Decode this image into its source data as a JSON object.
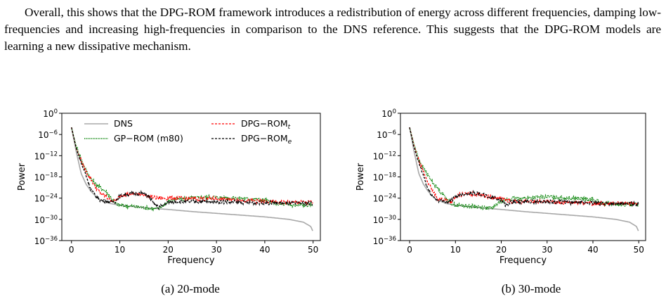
{
  "paragraph": "Overall, this shows that the DPG-ROM framework introduces a redistribution of energy across different frequencies, damping low-frequencies and increasing high-frequencies in comparison to the DNS reference. This suggests that the DPG-ROM models are learning a new dissipative mechanism.",
  "captions": {
    "a": "(a) 20-mode",
    "b": "(b) 30-mode"
  },
  "colors": {
    "DNS": "#a8a8a8",
    "GP-ROM": "#008000",
    "DPG-ROM_t": "#ff0000",
    "DPG-ROM_e": "#000000"
  },
  "chart_data": [
    {
      "type": "line",
      "xlabel": "Frequency",
      "ylabel": "Power",
      "xlim": [
        -2,
        51.5
      ],
      "ylim_exponent": [
        -36,
        0
      ],
      "y_scale": "log",
      "x_ticks": [
        0,
        10,
        20,
        30,
        40,
        50
      ],
      "y_ticks": [
        "10^0",
        "10^-6",
        "10^-12",
        "10^-18",
        "10^-24",
        "10^-30",
        "10^-36"
      ],
      "legend": {
        "placement": "top",
        "entries": [
          "DNS",
          "GP−ROM (m80)",
          "DPG−ROM_t",
          "DPG−ROM_e"
        ]
      },
      "series": [
        {
          "name": "DNS",
          "log10_y": [
            [
              0,
              -4
            ],
            [
              1,
              -11
            ],
            [
              2,
              -17
            ],
            [
              3,
              -20
            ],
            [
              4,
              -22
            ],
            [
              5,
              -23.5
            ],
            [
              6,
              -24.5
            ],
            [
              8,
              -25.5
            ],
            [
              10,
              -26
            ],
            [
              15,
              -26.7
            ],
            [
              20,
              -27.2
            ],
            [
              25,
              -27.8
            ],
            [
              30,
              -28.3
            ],
            [
              35,
              -28.8
            ],
            [
              40,
              -29.3
            ],
            [
              45,
              -30
            ],
            [
              48,
              -30.8
            ],
            [
              49.5,
              -32
            ],
            [
              50,
              -33.5
            ]
          ]
        },
        {
          "name": "GP−ROM (m80)",
          "log10_y": [
            [
              0,
              -4
            ],
            [
              1,
              -9.5
            ],
            [
              2,
              -13
            ],
            [
              3,
              -16
            ],
            [
              4,
              -18.5
            ],
            [
              5,
              -20
            ],
            [
              6,
              -21
            ],
            [
              7,
              -22
            ],
            [
              8,
              -23.5
            ],
            [
              9,
              -25.5
            ],
            [
              10,
              -26
            ],
            [
              14,
              -26.5
            ],
            [
              17,
              -27
            ],
            [
              18,
              -27
            ],
            [
              19,
              -26
            ],
            [
              20,
              -25
            ],
            [
              21,
              -24.5
            ],
            [
              24,
              -24
            ],
            [
              28,
              -23.7
            ],
            [
              31,
              -23.8
            ],
            [
              35,
              -24
            ],
            [
              40,
              -24.5
            ],
            [
              42,
              -25.5
            ],
            [
              45,
              -26
            ],
            [
              50,
              -26
            ]
          ]
        },
        {
          "name": "DPG−ROM_t",
          "log10_y": [
            [
              0,
              -4
            ],
            [
              1,
              -10
            ],
            [
              2,
              -13.5
            ],
            [
              3,
              -16.5
            ],
            [
              4,
              -18.5
            ],
            [
              5,
              -21
            ],
            [
              6,
              -22.5
            ],
            [
              7,
              -23.5
            ],
            [
              8,
              -24.5
            ],
            [
              9,
              -25
            ],
            [
              10,
              -23.5
            ],
            [
              11,
              -23
            ],
            [
              13,
              -22.8
            ],
            [
              15,
              -23
            ],
            [
              16,
              -23.5
            ],
            [
              18,
              -24
            ],
            [
              20,
              -24
            ],
            [
              22,
              -24
            ],
            [
              25,
              -24.2
            ],
            [
              30,
              -24.2
            ],
            [
              35,
              -24.5
            ],
            [
              40,
              -25
            ],
            [
              45,
              -25.2
            ],
            [
              50,
              -25.2
            ]
          ]
        },
        {
          "name": "DPG−ROM_e",
          "log10_y": [
            [
              0,
              -4
            ],
            [
              1,
              -10
            ],
            [
              2,
              -14
            ],
            [
              3,
              -17.5
            ],
            [
              4,
              -21.5
            ],
            [
              5,
              -23.5
            ],
            [
              6,
              -24.5
            ],
            [
              8,
              -25.2
            ],
            [
              9,
              -25
            ],
            [
              10,
              -23.5
            ],
            [
              11,
              -23
            ],
            [
              13,
              -22.6
            ],
            [
              15,
              -22.7
            ],
            [
              16,
              -23.5
            ],
            [
              17,
              -25.5
            ],
            [
              18,
              -26.5
            ],
            [
              19,
              -26
            ],
            [
              20,
              -25.2
            ],
            [
              22,
              -25
            ],
            [
              25,
              -25
            ],
            [
              30,
              -25
            ],
            [
              35,
              -25.2
            ],
            [
              40,
              -25.3
            ],
            [
              45,
              -25.5
            ],
            [
              50,
              -25.5
            ]
          ]
        }
      ]
    },
    {
      "type": "line",
      "xlabel": "Frequency",
      "ylabel": "Power",
      "xlim": [
        -2,
        51.5
      ],
      "ylim_exponent": [
        -36,
        0
      ],
      "y_scale": "log",
      "x_ticks": [
        0,
        10,
        20,
        30,
        40,
        50
      ],
      "y_ticks": [
        "10^0",
        "10^-6",
        "10^-12",
        "10^-18",
        "10^-24",
        "10^-30",
        "10^-36"
      ],
      "series": [
        {
          "name": "DNS",
          "log10_y": [
            [
              0,
              -4
            ],
            [
              1,
              -11
            ],
            [
              2,
              -17
            ],
            [
              3,
              -20
            ],
            [
              4,
              -22
            ],
            [
              5,
              -23.5
            ],
            [
              6,
              -24.5
            ],
            [
              8,
              -25.5
            ],
            [
              10,
              -26
            ],
            [
              15,
              -26.7
            ],
            [
              20,
              -27.2
            ],
            [
              25,
              -27.8
            ],
            [
              30,
              -28.3
            ],
            [
              35,
              -28.8
            ],
            [
              40,
              -29.3
            ],
            [
              45,
              -30
            ],
            [
              48,
              -30.8
            ],
            [
              49.5,
              -32
            ],
            [
              50,
              -33.5
            ]
          ]
        },
        {
          "name": "GP−ROM (m80)",
          "log10_y": [
            [
              0,
              -4
            ],
            [
              1,
              -9
            ],
            [
              2,
              -13
            ],
            [
              3,
              -15.5
            ],
            [
              4,
              -17.5
            ],
            [
              5,
              -19.5
            ],
            [
              6,
              -21
            ],
            [
              7,
              -22.5
            ],
            [
              8,
              -24
            ],
            [
              9,
              -25.5
            ],
            [
              10,
              -26
            ],
            [
              14,
              -26.3
            ],
            [
              17,
              -26.8
            ],
            [
              18,
              -26.8
            ],
            [
              19,
              -25.8
            ],
            [
              20,
              -24.8
            ],
            [
              22,
              -24.2
            ],
            [
              25,
              -24
            ],
            [
              28,
              -23.8
            ],
            [
              31,
              -23.6
            ],
            [
              35,
              -24
            ],
            [
              38,
              -24.2
            ],
            [
              40,
              -24.5
            ],
            [
              42,
              -25.5
            ],
            [
              45,
              -25.8
            ],
            [
              50,
              -25.8
            ]
          ]
        },
        {
          "name": "DPG−ROM_t",
          "log10_y": [
            [
              0,
              -4
            ],
            [
              1,
              -9.5
            ],
            [
              2,
              -13.5
            ],
            [
              3,
              -16.5
            ],
            [
              4,
              -19.5
            ],
            [
              5,
              -22
            ],
            [
              6,
              -24
            ],
            [
              8,
              -24.5
            ],
            [
              9,
              -25.2
            ],
            [
              10,
              -24
            ],
            [
              11,
              -23
            ],
            [
              13,
              -22.8
            ],
            [
              15,
              -22.8
            ],
            [
              17,
              -23.5
            ],
            [
              19,
              -24
            ],
            [
              21,
              -24.5
            ],
            [
              22,
              -25
            ],
            [
              25,
              -25
            ],
            [
              30,
              -25
            ],
            [
              35,
              -25.2
            ],
            [
              40,
              -25.5
            ],
            [
              45,
              -25.5
            ],
            [
              50,
              -25.5
            ]
          ]
        },
        {
          "name": "DPG−ROM_e",
          "log10_y": [
            [
              0,
              -4
            ],
            [
              1,
              -10
            ],
            [
              2,
              -14
            ],
            [
              3,
              -17.5
            ],
            [
              4,
              -21.5
            ],
            [
              5,
              -23.5
            ],
            [
              6,
              -24.5
            ],
            [
              8,
              -25
            ],
            [
              9,
              -24.8
            ],
            [
              10,
              -23.8
            ],
            [
              11,
              -23
            ],
            [
              13,
              -22.6
            ],
            [
              15,
              -22.7
            ],
            [
              17,
              -23.5
            ],
            [
              19,
              -24
            ],
            [
              20,
              -24.5
            ],
            [
              21,
              -26
            ],
            [
              22,
              -25.3
            ],
            [
              25,
              -25
            ],
            [
              30,
              -25
            ],
            [
              35,
              -25.2
            ],
            [
              40,
              -25.4
            ],
            [
              45,
              -25.6
            ],
            [
              50,
              -25.6
            ]
          ]
        }
      ]
    }
  ]
}
